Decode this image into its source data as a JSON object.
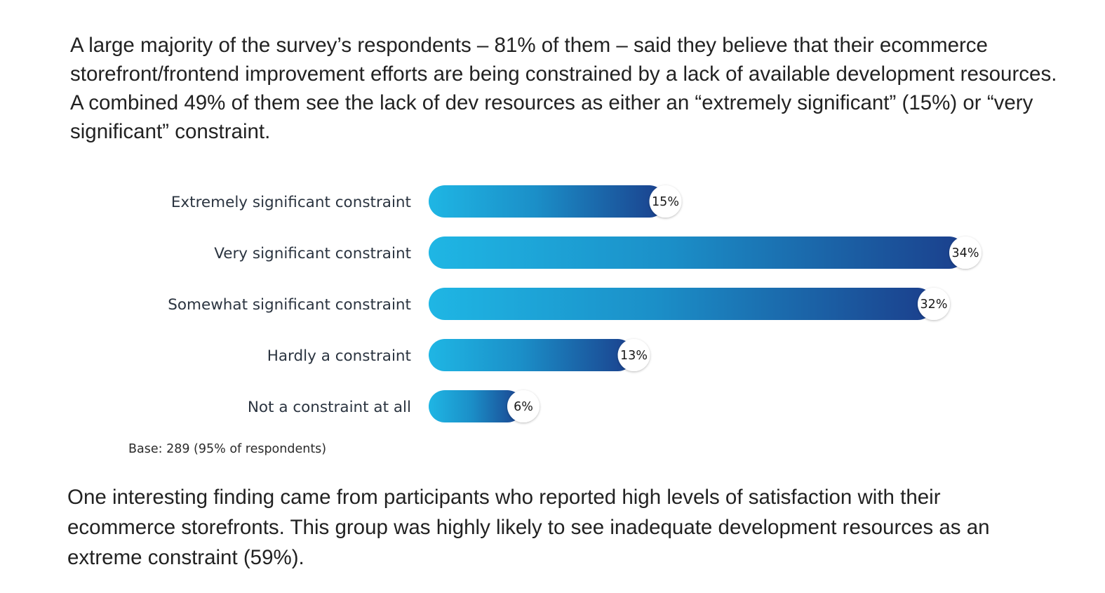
{
  "intro_text": "A large majority of the survey’s respondents – 81% of them – said they believe that their ecommerce storefront/frontend improvement efforts are being constrained by a lack of available development resources. A combined 49% of them see the lack of dev resources as either an “extremely significant” (15%) or “very significant” constraint.",
  "outro_text": "One interesting finding came from participants who reported high levels of satisfaction with their ecommerce storefronts. This group was highly likely to see inadequate development resources as an extreme constraint (59%).",
  "colors": {
    "bar_start": "#1fb6e4",
    "bar_mid": "#1b8fc8",
    "bar_end": "#1b3f8c",
    "value_circle": "#ffffff"
  },
  "chart_data": {
    "type": "bar",
    "orientation": "horizontal",
    "categories": [
      "Extremely significant constraint",
      "Very significant constraint",
      "Somewhat significant constraint",
      "Hardly a constraint",
      "Not a constraint at all"
    ],
    "values": [
      15,
      34,
      32,
      13,
      6
    ],
    "value_labels": [
      "15%",
      "34%",
      "32%",
      "13%",
      "6%"
    ],
    "unit": "%",
    "xlim": [
      0,
      34
    ],
    "grid": false,
    "legend": "none",
    "base_note": "Base: 289 (95% of respondents)"
  }
}
